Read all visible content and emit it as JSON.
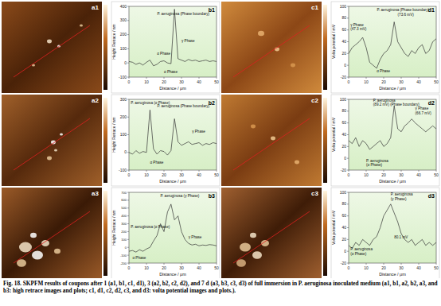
{
  "chart_data": [
    {
      "type": "line",
      "title": "b1",
      "x_label": "Distance / μm",
      "y_label": "Height Retrace / nm",
      "color": "#333333",
      "grid": false,
      "x": [
        0,
        2,
        4,
        6,
        8,
        10,
        12,
        14,
        16,
        18,
        20,
        22,
        24,
        26,
        28,
        30,
        32,
        34,
        36,
        38,
        40,
        42,
        44,
        46,
        48,
        50
      ],
      "values": [
        10,
        5,
        -10,
        0,
        -15,
        5,
        20,
        -20,
        -10,
        10,
        15,
        0,
        -5,
        380,
        30,
        20,
        10,
        25,
        15,
        20,
        10,
        15,
        20,
        10,
        15,
        10
      ],
      "xlim": [
        0,
        50
      ],
      "xticks": [
        0,
        10,
        20,
        30,
        40,
        50
      ],
      "ylim": [
        -100,
        400
      ],
      "yticks": [
        -100,
        0,
        100,
        200,
        300,
        400
      ],
      "annotations": [
        {
          "text": "P. aeruginosa (Phase boundary)",
          "x": 29,
          "y": 340
        },
        {
          "text": "γ Phase",
          "x": 30,
          "y": 150
        },
        {
          "text": "α Phase",
          "x": 16,
          "y": 60
        },
        {
          "text": "α Phase",
          "x": 20,
          "y": -70
        }
      ]
    },
    {
      "type": "line",
      "title": "d1",
      "x_label": "Distance / μm",
      "y_label": "Volta potential / mV",
      "color": "#333333",
      "grid": false,
      "x": [
        0,
        2,
        4,
        6,
        8,
        10,
        12,
        14,
        16,
        18,
        20,
        22,
        24,
        26,
        28,
        30,
        32,
        34,
        36,
        38,
        40,
        42,
        44,
        46,
        48,
        50
      ],
      "values": [
        20,
        30,
        35,
        40,
        47.3,
        30,
        5,
        0,
        -5,
        10,
        20,
        25,
        35,
        73.6,
        40,
        30,
        20,
        15,
        25,
        20,
        30,
        35,
        20,
        25,
        40,
        45
      ],
      "xlim": [
        0,
        50
      ],
      "xticks": [
        0,
        10,
        20,
        30,
        40,
        50
      ],
      "ylim": [
        -20,
        100
      ],
      "yticks": [
        -20,
        0,
        20,
        40,
        60,
        80,
        100
      ],
      "annotations": [
        {
          "text": "P. aeruginosa (Phase boundary)",
          "x": 24,
          "y": 92
        },
        {
          "text": "(73.6 mV)",
          "x": 28,
          "y": 84
        },
        {
          "text": "γ Phase",
          "x": 1,
          "y": 66
        },
        {
          "text": "(47.3 mV)",
          "x": 1,
          "y": 59
        },
        {
          "text": "α Phase",
          "x": 16,
          "y": -12
        }
      ]
    },
    {
      "type": "line",
      "title": "b2",
      "x_label": "Distance / μm",
      "y_label": "Height Retrace / nm",
      "color": "#333333",
      "grid": false,
      "x": [
        0,
        2,
        4,
        6,
        8,
        10,
        12,
        14,
        16,
        18,
        20,
        22,
        24,
        26,
        28,
        30,
        32,
        34,
        36,
        38,
        40,
        42,
        44,
        46,
        48,
        50
      ],
      "values": [
        0,
        -10,
        10,
        -5,
        5,
        0,
        240,
        20,
        -10,
        10,
        5,
        -15,
        10,
        190,
        60,
        40,
        50,
        60,
        45,
        50,
        55,
        40,
        50,
        45,
        55,
        50
      ],
      "xlim": [
        0,
        50
      ],
      "xticks": [
        0,
        10,
        20,
        30,
        40,
        50
      ],
      "ylim": [
        -100,
        300
      ],
      "yticks": [
        -100,
        0,
        100,
        200,
        300
      ],
      "annotations": [
        {
          "text": "P. aeruginosa (α Phase)",
          "x": 1,
          "y": 275
        },
        {
          "text": "P. aeruginosa (Phase boundary)",
          "x": 22,
          "y": 255
        },
        {
          "text": "γ Phase",
          "x": 36,
          "y": 110
        },
        {
          "text": "α Phase",
          "x": 12,
          "y": -65
        }
      ]
    },
    {
      "type": "line",
      "title": "d2",
      "x_label": "Distance / μm",
      "y_label": "Volta potential / mV",
      "color": "#333333",
      "grid": false,
      "x": [
        0,
        2,
        4,
        6,
        8,
        10,
        12,
        14,
        16,
        18,
        20,
        22,
        24,
        26,
        28,
        30,
        32,
        34,
        36,
        38,
        40,
        42,
        44,
        46,
        48,
        50
      ],
      "values": [
        30,
        25,
        35,
        20,
        30,
        25,
        15,
        20,
        25,
        30,
        20,
        25,
        35,
        89.2,
        50,
        45,
        55,
        60,
        66.7,
        60,
        55,
        50,
        45,
        50,
        55,
        50
      ],
      "xlim": [
        0,
        50
      ],
      "xticks": [
        0,
        10,
        20,
        30,
        40,
        50
      ],
      "ylim": [
        -20,
        100
      ],
      "yticks": [
        -20,
        0,
        20,
        40,
        60,
        80,
        100
      ],
      "annotations": [
        {
          "text": "P. aeruginosa",
          "x": 14,
          "y": 96
        },
        {
          "text": "(89.2 mV) (Phase boundary)",
          "x": 14,
          "y": 89
        },
        {
          "text": "γ Phase",
          "x": 38,
          "y": 82
        },
        {
          "text": "(66.7 mV)",
          "x": 38,
          "y": 75
        },
        {
          "text": "P. aeruginosa",
          "x": 10,
          "y": -6
        },
        {
          "text": "(α Phase)",
          "x": 10,
          "y": -13
        }
      ]
    },
    {
      "type": "line",
      "title": "b3",
      "x_label": "Distance / μm",
      "y_label": "Height Retrace / nm",
      "color": "#333333",
      "grid": false,
      "x": [
        0,
        2,
        4,
        6,
        8,
        10,
        12,
        14,
        16,
        18,
        20,
        22,
        24,
        26,
        28,
        30,
        32,
        34,
        36,
        38,
        40,
        42,
        44,
        46,
        48,
        50
      ],
      "values": [
        -50,
        -40,
        -60,
        -30,
        -50,
        -20,
        0,
        80,
        150,
        300,
        200,
        450,
        550,
        350,
        400,
        200,
        100,
        50,
        30,
        40,
        20,
        30,
        25,
        35,
        30,
        20
      ],
      "xlim": [
        0,
        50
      ],
      "xticks": [
        0,
        10,
        20,
        30,
        40,
        50
      ],
      "ylim": [
        -200,
        700
      ],
      "yticks": [
        -200,
        -100,
        0,
        100,
        200,
        300,
        400,
        500,
        600,
        700
      ],
      "annotations": [
        {
          "text": "P. aeruginosa (α Phase)",
          "x": 1,
          "y": 250
        },
        {
          "text": "P. aeruginosa (γ Phase)",
          "x": 18,
          "y": 640
        },
        {
          "text": "γ Phase",
          "x": 34,
          "y": 110
        },
        {
          "text": "α Phase",
          "x": 2,
          "y": -150
        }
      ]
    },
    {
      "type": "line",
      "title": "d3",
      "x_label": "Distance / μm",
      "y_label": "Volta potential / mV",
      "color": "#333333",
      "grid": false,
      "x": [
        0,
        2,
        4,
        6,
        8,
        10,
        12,
        14,
        16,
        18,
        20,
        22,
        24,
        26,
        28,
        30,
        32,
        34,
        36,
        38,
        40,
        42,
        44,
        46,
        48,
        50
      ],
      "values": [
        10,
        5,
        15,
        10,
        20,
        15,
        10,
        20,
        25,
        40,
        60,
        70,
        80.1,
        65,
        50,
        30,
        20,
        15,
        20,
        10,
        15,
        20,
        10,
        15,
        10,
        15
      ],
      "xlim": [
        0,
        50
      ],
      "xticks": [
        0,
        10,
        20,
        30,
        40,
        50
      ],
      "ylim": [
        -20,
        100
      ],
      "yticks": [
        -20,
        0,
        20,
        40,
        60,
        80,
        100
      ],
      "annotations": [
        {
          "text": "P. aeruginosa",
          "x": 24,
          "y": 94
        },
        {
          "text": "(γ Phase)",
          "x": 24,
          "y": 87
        },
        {
          "text": "P. aeruginosa",
          "x": 1,
          "y": 2
        },
        {
          "text": "(α Phase)",
          "x": 1,
          "y": -6
        },
        {
          "text": "80.1 mV",
          "x": 26,
          "y": 22
        }
      ]
    }
  ],
  "images": [
    {
      "label": "a1"
    },
    {
      "label": "c1"
    },
    {
      "label": "a2"
    },
    {
      "label": "c2"
    },
    {
      "label": "a3"
    },
    {
      "label": "c3"
    }
  ],
  "caption": "Fig. 18. SKPFM results of coupons after 1 (a1, b1, c1, d1), 3 (a2, b2, c2, d2), and 7 d (a3, b3, c3, d3) of full immersion in P. aeruginosa inoculated medium (a1, b1, a2, b2, a3, and b3: high retrace images and plots; c1, d1, c2, d2, c3, and d3: volta potential images and plots.)."
}
